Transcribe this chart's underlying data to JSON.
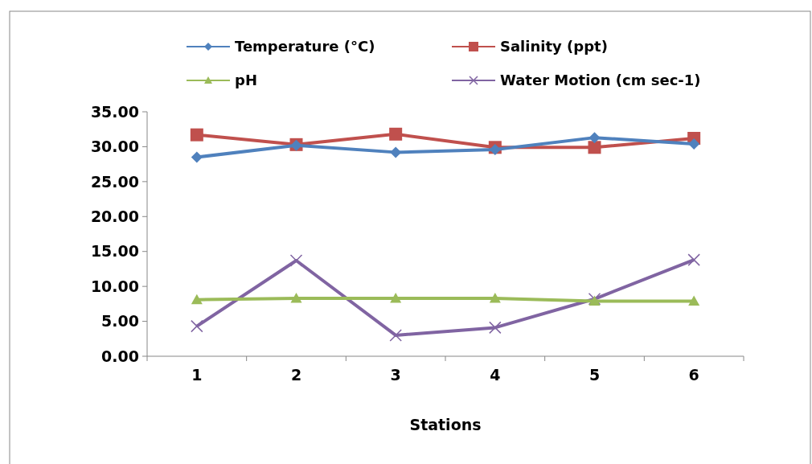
{
  "chart_data": {
    "type": "line",
    "xlabel": "Stations",
    "categories": [
      "1",
      "2",
      "3",
      "4",
      "5",
      "6"
    ],
    "series": [
      {
        "name": "Temperature (°C)",
        "color": "#4f81bd",
        "marker": "diamond",
        "values": [
          28.5,
          30.2,
          29.2,
          29.6,
          31.3,
          30.4
        ]
      },
      {
        "name": "Salinity (ppt)",
        "color": "#c0504d",
        "marker": "square",
        "values": [
          31.7,
          30.3,
          31.8,
          29.9,
          29.9,
          31.2
        ]
      },
      {
        "name": "pH",
        "color": "#9bbb59",
        "marker": "triangle",
        "values": [
          8.1,
          8.3,
          8.3,
          8.3,
          7.9,
          7.9
        ]
      },
      {
        "name": "Water Motion (cm sec-1)",
        "color": "#8064a2",
        "marker": "cross",
        "values": [
          4.3,
          13.7,
          3.0,
          4.1,
          8.2,
          13.8
        ]
      }
    ],
    "ylim": [
      0,
      35
    ],
    "yticks": [
      {
        "value": 0,
        "label": "0.00"
      },
      {
        "value": 5,
        "label": "5.00"
      },
      {
        "value": 10,
        "label": "10.00"
      },
      {
        "value": 15,
        "label": "15.00"
      },
      {
        "value": 20,
        "label": "20.00"
      },
      {
        "value": 25,
        "label": "25.00"
      },
      {
        "value": 30,
        "label": "30.00"
      },
      {
        "value": 35,
        "label": "35.00"
      }
    ],
    "legend": "top",
    "grid": false,
    "line_style": "solid"
  }
}
